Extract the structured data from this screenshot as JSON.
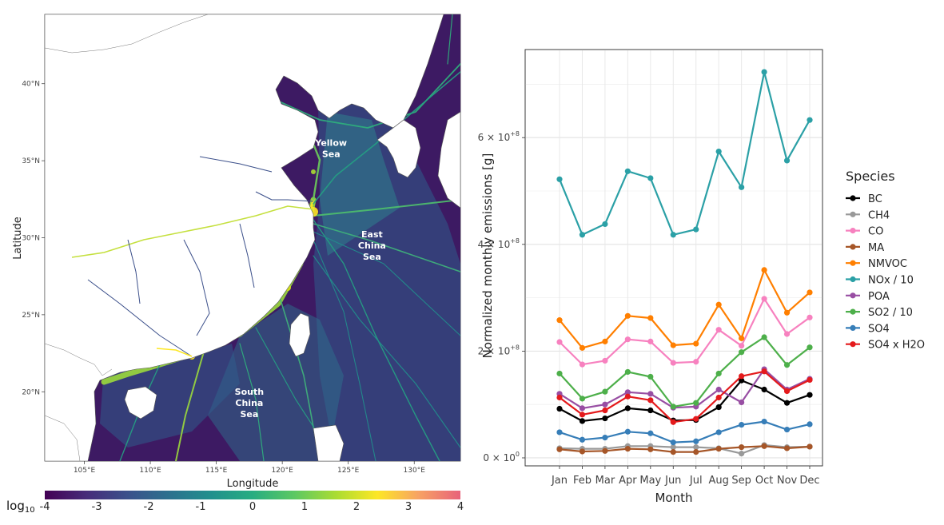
{
  "map": {
    "xlabel": "Longitude",
    "ylabel": "Latitude",
    "lon_range": [
      102,
      133.5
    ],
    "lat_range": [
      15.5,
      44.5
    ],
    "lon_ticks": [
      105,
      110,
      115,
      120,
      125,
      130
    ],
    "lon_tick_labels": [
      "105°E",
      "110°E",
      "115°E",
      "120°E",
      "125°E",
      "130°E"
    ],
    "lat_ticks": [
      20,
      25,
      30,
      35,
      40
    ],
    "lat_tick_labels": [
      "20°N",
      "25°N",
      "30°N",
      "35°N",
      "40°N"
    ],
    "annotations": [
      {
        "lines": [
          "Yellow",
          "Sea"
        ],
        "lon": 123.7,
        "lat": 35.8
      },
      {
        "lines": [
          "East",
          "China",
          "Sea"
        ],
        "lon": 126.8,
        "lat": 29.5
      },
      {
        "lines": [
          "South",
          "China",
          "Sea"
        ],
        "lon": 117.5,
        "lat": 19.3
      }
    ],
    "colorbar": {
      "label_prefix": "log",
      "label_sub": "10",
      "range": [
        -4,
        4
      ],
      "tick_labels": [
        "-4",
        "-3",
        "-2",
        "-1",
        "0",
        "1",
        "2",
        "3",
        "4"
      ],
      "colors": [
        "#440154",
        "#472c7a",
        "#3b518b",
        "#2c718e",
        "#21908d",
        "#27ad81",
        "#5cc863",
        "#aadc32",
        "#fde725",
        "#f7a264",
        "#e8627a"
      ]
    }
  },
  "chart_data": {
    "type": "line",
    "xlabel": "Month",
    "ylabel": "Normalized monthly emissions [g]",
    "ylim": [
      -15000000,
      765000000
    ],
    "y_ticks": [
      0,
      200000000,
      400000000,
      600000000
    ],
    "y_tick_labels": [
      {
        "mant": "0 × 10",
        "exp": "0"
      },
      {
        "mant": "2 × 10",
        "exp": "+8"
      },
      {
        "mant": "4 × 10",
        "exp": "+8"
      },
      {
        "mant": "6 × 10",
        "exp": "+8"
      }
    ],
    "categories": [
      "Jan",
      "Feb",
      "Mar",
      "Apr",
      "May",
      "Jun",
      "Jul",
      "Aug",
      "Sep",
      "Oct",
      "Nov",
      "Dec"
    ],
    "legend_title": "Species",
    "legend_position": "right",
    "series": [
      {
        "name": "BC",
        "color": "#000000",
        "values": [
          92000000,
          69000000,
          74000000,
          93000000,
          89000000,
          70000000,
          71000000,
          95000000,
          145000000,
          128000000,
          103000000,
          118000000
        ]
      },
      {
        "name": "CH4",
        "color": "#999999",
        "values": [
          18000000,
          17000000,
          17000000,
          22000000,
          22000000,
          20000000,
          20000000,
          18000000,
          8000000,
          24000000,
          20000000,
          21000000
        ]
      },
      {
        "name": "CO",
        "color": "#f781bf",
        "values": [
          217000000,
          175000000,
          182000000,
          222000000,
          218000000,
          178000000,
          180000000,
          240000000,
          210000000,
          298000000,
          232000000,
          263000000
        ]
      },
      {
        "name": "MA",
        "color": "#a65628",
        "values": [
          16000000,
          12000000,
          13000000,
          17000000,
          16000000,
          11000000,
          11000000,
          17000000,
          20000000,
          22000000,
          18000000,
          21000000
        ]
      },
      {
        "name": "NMVOC",
        "color": "#ff7f00",
        "values": [
          258000000,
          206000000,
          218000000,
          266000000,
          262000000,
          211000000,
          214000000,
          287000000,
          224000000,
          352000000,
          272000000,
          310000000
        ]
      },
      {
        "name": "NOx / 10",
        "color": "#2ba0a6",
        "values": [
          522000000,
          418000000,
          438000000,
          537000000,
          524000000,
          418000000,
          428000000,
          574000000,
          507000000,
          723000000,
          557000000,
          633000000
        ]
      },
      {
        "name": "POA",
        "color": "#984ea3",
        "values": [
          120000000,
          93000000,
          100000000,
          123000000,
          120000000,
          94000000,
          96000000,
          128000000,
          104000000,
          166000000,
          128000000,
          148000000
        ]
      },
      {
        "name": "SO2 / 10",
        "color": "#4daf4a",
        "values": [
          158000000,
          111000000,
          124000000,
          161000000,
          152000000,
          96000000,
          103000000,
          158000000,
          198000000,
          226000000,
          174000000,
          207000000
        ]
      },
      {
        "name": "SO4",
        "color": "#377eb8",
        "values": [
          48000000,
          34000000,
          38000000,
          49000000,
          46000000,
          29000000,
          31000000,
          48000000,
          62000000,
          68000000,
          53000000,
          63000000
        ]
      },
      {
        "name": "SO4 x H2O",
        "color": "#e41a1c",
        "values": [
          113000000,
          81000000,
          89000000,
          115000000,
          108000000,
          67000000,
          73000000,
          113000000,
          153000000,
          162000000,
          125000000,
          146000000
        ]
      }
    ]
  }
}
